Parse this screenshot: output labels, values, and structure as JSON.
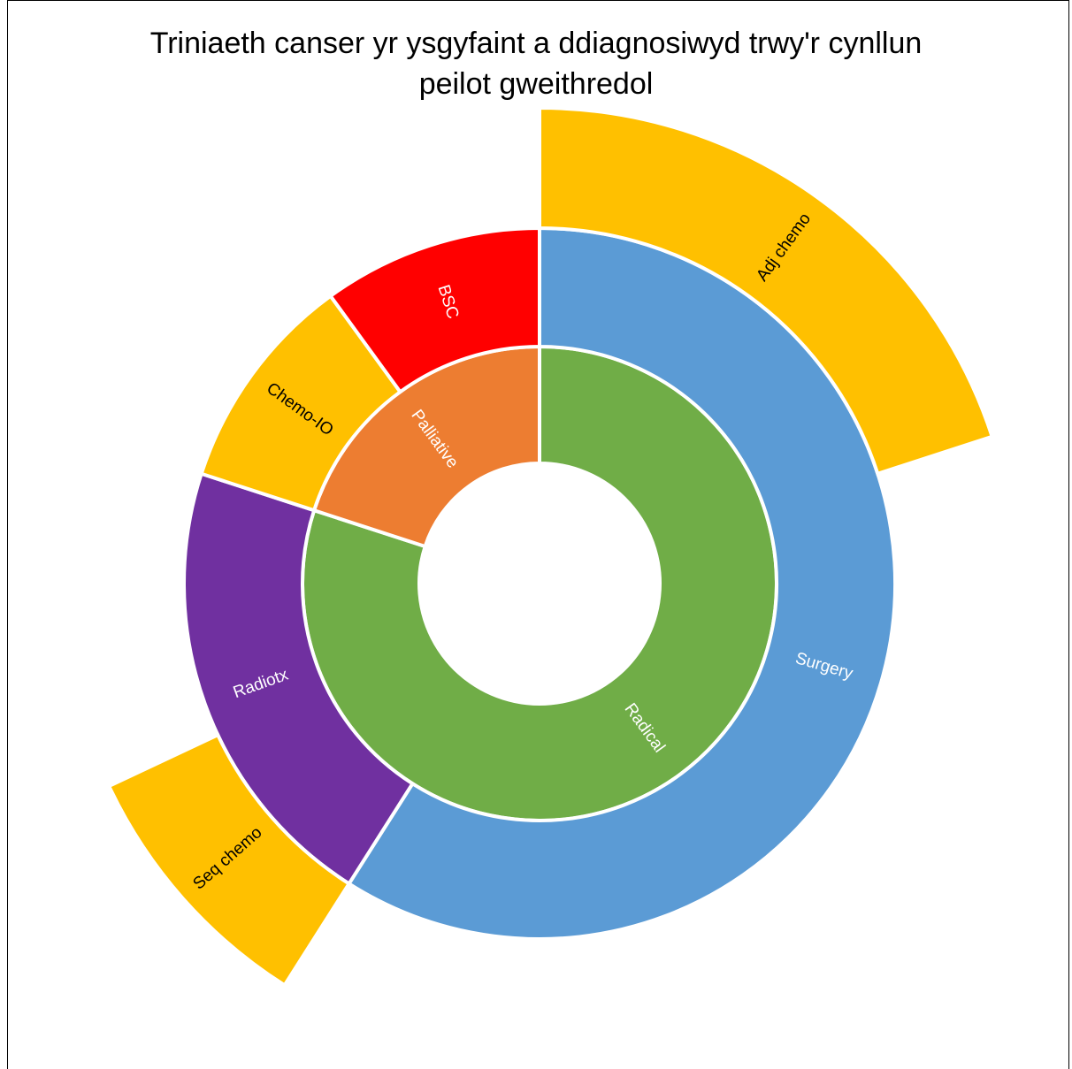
{
  "chart_data": {
    "type": "sunburst",
    "title": "Triniaeth canser yr ysgyfaint a ddiagnosiwyd trwy'r cynllun peilot gweithredol",
    "title_lines": [
      "Triniaeth canser yr ysgyfaint a ddiagnosiwyd trwy'r cynllun",
      "peilot gweithredol"
    ],
    "levels": [
      [
        {
          "name": "Radical",
          "value": 80,
          "color": "#70AD47",
          "text_color": "#ffffff"
        },
        {
          "name": "Palliative",
          "value": 20,
          "color": "#ED7D31",
          "text_color": "#ffffff"
        }
      ],
      [
        {
          "name": "Surgery",
          "parent": "Radical",
          "value": 59,
          "color": "#5B9BD5",
          "text_color": "#ffffff"
        },
        {
          "name": "Radiotx",
          "parent": "Radical",
          "value": 21,
          "color": "#7030A0",
          "text_color": "#ffffff"
        },
        {
          "name": "Chemo-IO",
          "parent": "Palliative",
          "value": 10,
          "color": "#FFC000",
          "text_color": "#000000"
        },
        {
          "name": "BSC",
          "parent": "Palliative",
          "value": 10,
          "color": "#FF0000",
          "text_color": "#ffffff"
        }
      ],
      [
        {
          "name": "Adj chemo",
          "parent": "Surgery",
          "value": 20,
          "color": "#FFC000",
          "text_color": "#000000"
        },
        {
          "name": "Seq chemo",
          "parent": "Radiotx",
          "value": 9,
          "color": "#FFC000",
          "text_color": "#000000"
        }
      ]
    ]
  }
}
